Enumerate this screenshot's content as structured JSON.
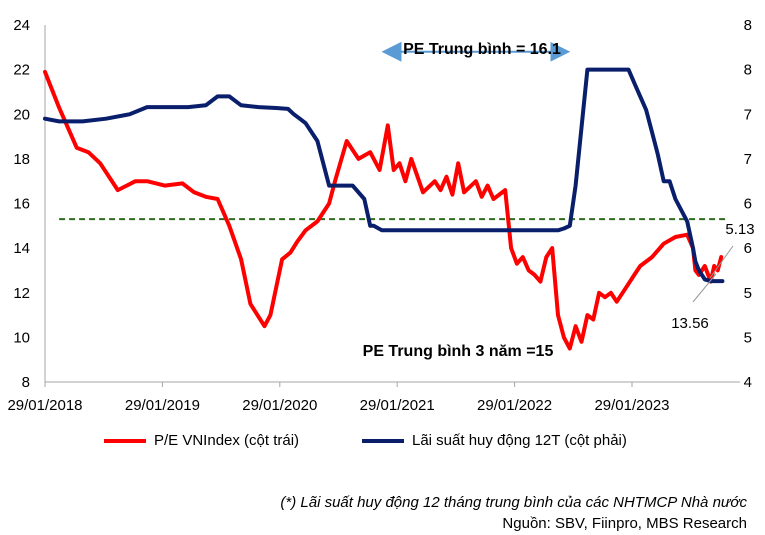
{
  "chart_data": {
    "type": "line",
    "title": "",
    "left_axis": {
      "min": 8,
      "max": 24,
      "ticks": [
        "8",
        "10",
        "12",
        "14",
        "16",
        "18",
        "20",
        "22",
        "24"
      ]
    },
    "right_axis": {
      "min": 4,
      "max": 8,
      "ticks": [
        "4",
        "5",
        "5",
        "6",
        "6",
        "7",
        "7",
        "8",
        "8"
      ]
    },
    "x_ticks": [
      "29/01/2018",
      "29/01/2019",
      "29/01/2020",
      "29/01/2021",
      "29/01/2022",
      "29/01/2023"
    ],
    "x_range": [
      2018.08,
      2024.0
    ],
    "series": [
      {
        "name": "P/E VNIndex (cột trái)",
        "axis": "left",
        "color": "#ff0000",
        "x": [
          2018.08,
          2018.2,
          2018.35,
          2018.45,
          2018.55,
          2018.7,
          2018.85,
          2018.95,
          2019.1,
          2019.25,
          2019.35,
          2019.45,
          2019.55,
          2019.65,
          2019.75,
          2019.83,
          2019.95,
          2020.0,
          2020.1,
          2020.17,
          2020.23,
          2020.3,
          2020.4,
          2020.5,
          2020.55,
          2020.65,
          2020.75,
          2020.85,
          2020.93,
          2021.0,
          2021.05,
          2021.1,
          2021.15,
          2021.2,
          2021.3,
          2021.4,
          2021.45,
          2021.5,
          2021.55,
          2021.6,
          2021.65,
          2021.75,
          2021.8,
          2021.85,
          2021.9,
          2022.0,
          2022.05,
          2022.1,
          2022.15,
          2022.2,
          2022.25,
          2022.3,
          2022.35,
          2022.4,
          2022.45,
          2022.5,
          2022.55,
          2022.6,
          2022.65,
          2022.7,
          2022.75,
          2022.8,
          2022.85,
          2022.9,
          2022.95,
          2023.0,
          2023.05,
          2023.1,
          2023.15,
          2023.25,
          2023.35,
          2023.45,
          2023.55,
          2023.6,
          2023.62,
          2023.65,
          2023.7,
          2023.75,
          2023.78,
          2023.81,
          2023.84
        ],
        "y": [
          21.9,
          20.3,
          18.5,
          18.3,
          17.8,
          16.6,
          17.0,
          17.0,
          16.8,
          16.9,
          16.5,
          16.3,
          16.2,
          15.0,
          13.5,
          11.5,
          10.5,
          11.0,
          13.5,
          13.8,
          14.3,
          14.8,
          15.2,
          16.0,
          17.0,
          18.8,
          18.0,
          18.3,
          17.5,
          19.5,
          17.5,
          17.8,
          17.0,
          18.0,
          16.5,
          17.0,
          16.6,
          17.2,
          16.4,
          17.8,
          16.5,
          17.0,
          16.3,
          16.8,
          16.2,
          16.6,
          14.0,
          13.3,
          13.6,
          13.0,
          12.8,
          12.5,
          13.6,
          14.0,
          11.0,
          10.0,
          9.5,
          10.5,
          9.8,
          11.0,
          10.8,
          12.0,
          11.8,
          12.0,
          11.6,
          12.0,
          12.4,
          12.8,
          13.2,
          13.6,
          14.2,
          14.5,
          14.6,
          14.0,
          13.0,
          12.8,
          13.2,
          12.5,
          13.2,
          13.0,
          13.6
        ]
      },
      {
        "name": "Lãi suất huy động 12T (cột phải)",
        "axis": "right",
        "color": "#0a1f6b",
        "x": [
          2018.08,
          2018.2,
          2018.4,
          2018.6,
          2018.8,
          2018.95,
          2019.1,
          2019.3,
          2019.45,
          2019.55,
          2019.65,
          2019.75,
          2019.9,
          2020.05,
          2020.15,
          2020.2,
          2020.25,
          2020.3,
          2020.4,
          2020.5,
          2020.6,
          2020.65,
          2020.7,
          2020.8,
          2020.85,
          2020.88,
          2020.95,
          2021.1,
          2021.3,
          2021.5,
          2021.6,
          2021.8,
          2022.0,
          2022.15,
          2022.25,
          2022.35,
          2022.45,
          2022.5,
          2022.55,
          2022.6,
          2022.7,
          2022.75,
          2022.85,
          2022.95,
          2023.05,
          2023.1,
          2023.15,
          2023.2,
          2023.25,
          2023.3,
          2023.35,
          2023.4,
          2023.45,
          2023.55,
          2023.6,
          2023.62,
          2023.65,
          2023.7,
          2023.75,
          2023.8,
          2023.85
        ],
        "y": [
          6.95,
          6.92,
          6.92,
          6.95,
          7.0,
          7.08,
          7.08,
          7.08,
          7.1,
          7.2,
          7.2,
          7.1,
          7.08,
          7.07,
          7.06,
          7.0,
          6.95,
          6.9,
          6.7,
          6.2,
          6.2,
          6.2,
          6.2,
          6.05,
          5.75,
          5.75,
          5.7,
          5.7,
          5.7,
          5.7,
          5.7,
          5.7,
          5.7,
          5.7,
          5.7,
          5.7,
          5.7,
          5.72,
          5.75,
          6.2,
          7.5,
          7.5,
          7.5,
          7.5,
          7.5,
          7.35,
          7.2,
          7.05,
          6.8,
          6.55,
          6.25,
          6.25,
          6.05,
          5.8,
          5.5,
          5.35,
          5.25,
          5.15,
          5.13,
          5.13,
          5.13
        ]
      }
    ],
    "reference_lines": [
      {
        "label": "PE Trung bình 3 năm =15",
        "axis": "left",
        "value": 15.3,
        "color": "#2e6b1f",
        "style": "dashed"
      }
    ],
    "annotations": [
      {
        "text": "PE Trung bình = 16.1",
        "type": "double-arrow",
        "x_start": 2020.98,
        "x_end": 2022.52,
        "y": 22.8,
        "color": "#5b9bd5"
      },
      {
        "text": "13.56",
        "type": "end-label"
      },
      {
        "text": "5.13",
        "type": "end-label"
      }
    ]
  },
  "legend": {
    "pe_label": "P/E VNIndex (cột trái)",
    "rate_label": "Lãi suất huy động 12T (cột phải)"
  },
  "footnote": "(*) Lãi suất huy động 12 tháng trung bình của các NHTMCP Nhà nước",
  "source": "Nguồn: SBV, Fiinpro, MBS Research"
}
